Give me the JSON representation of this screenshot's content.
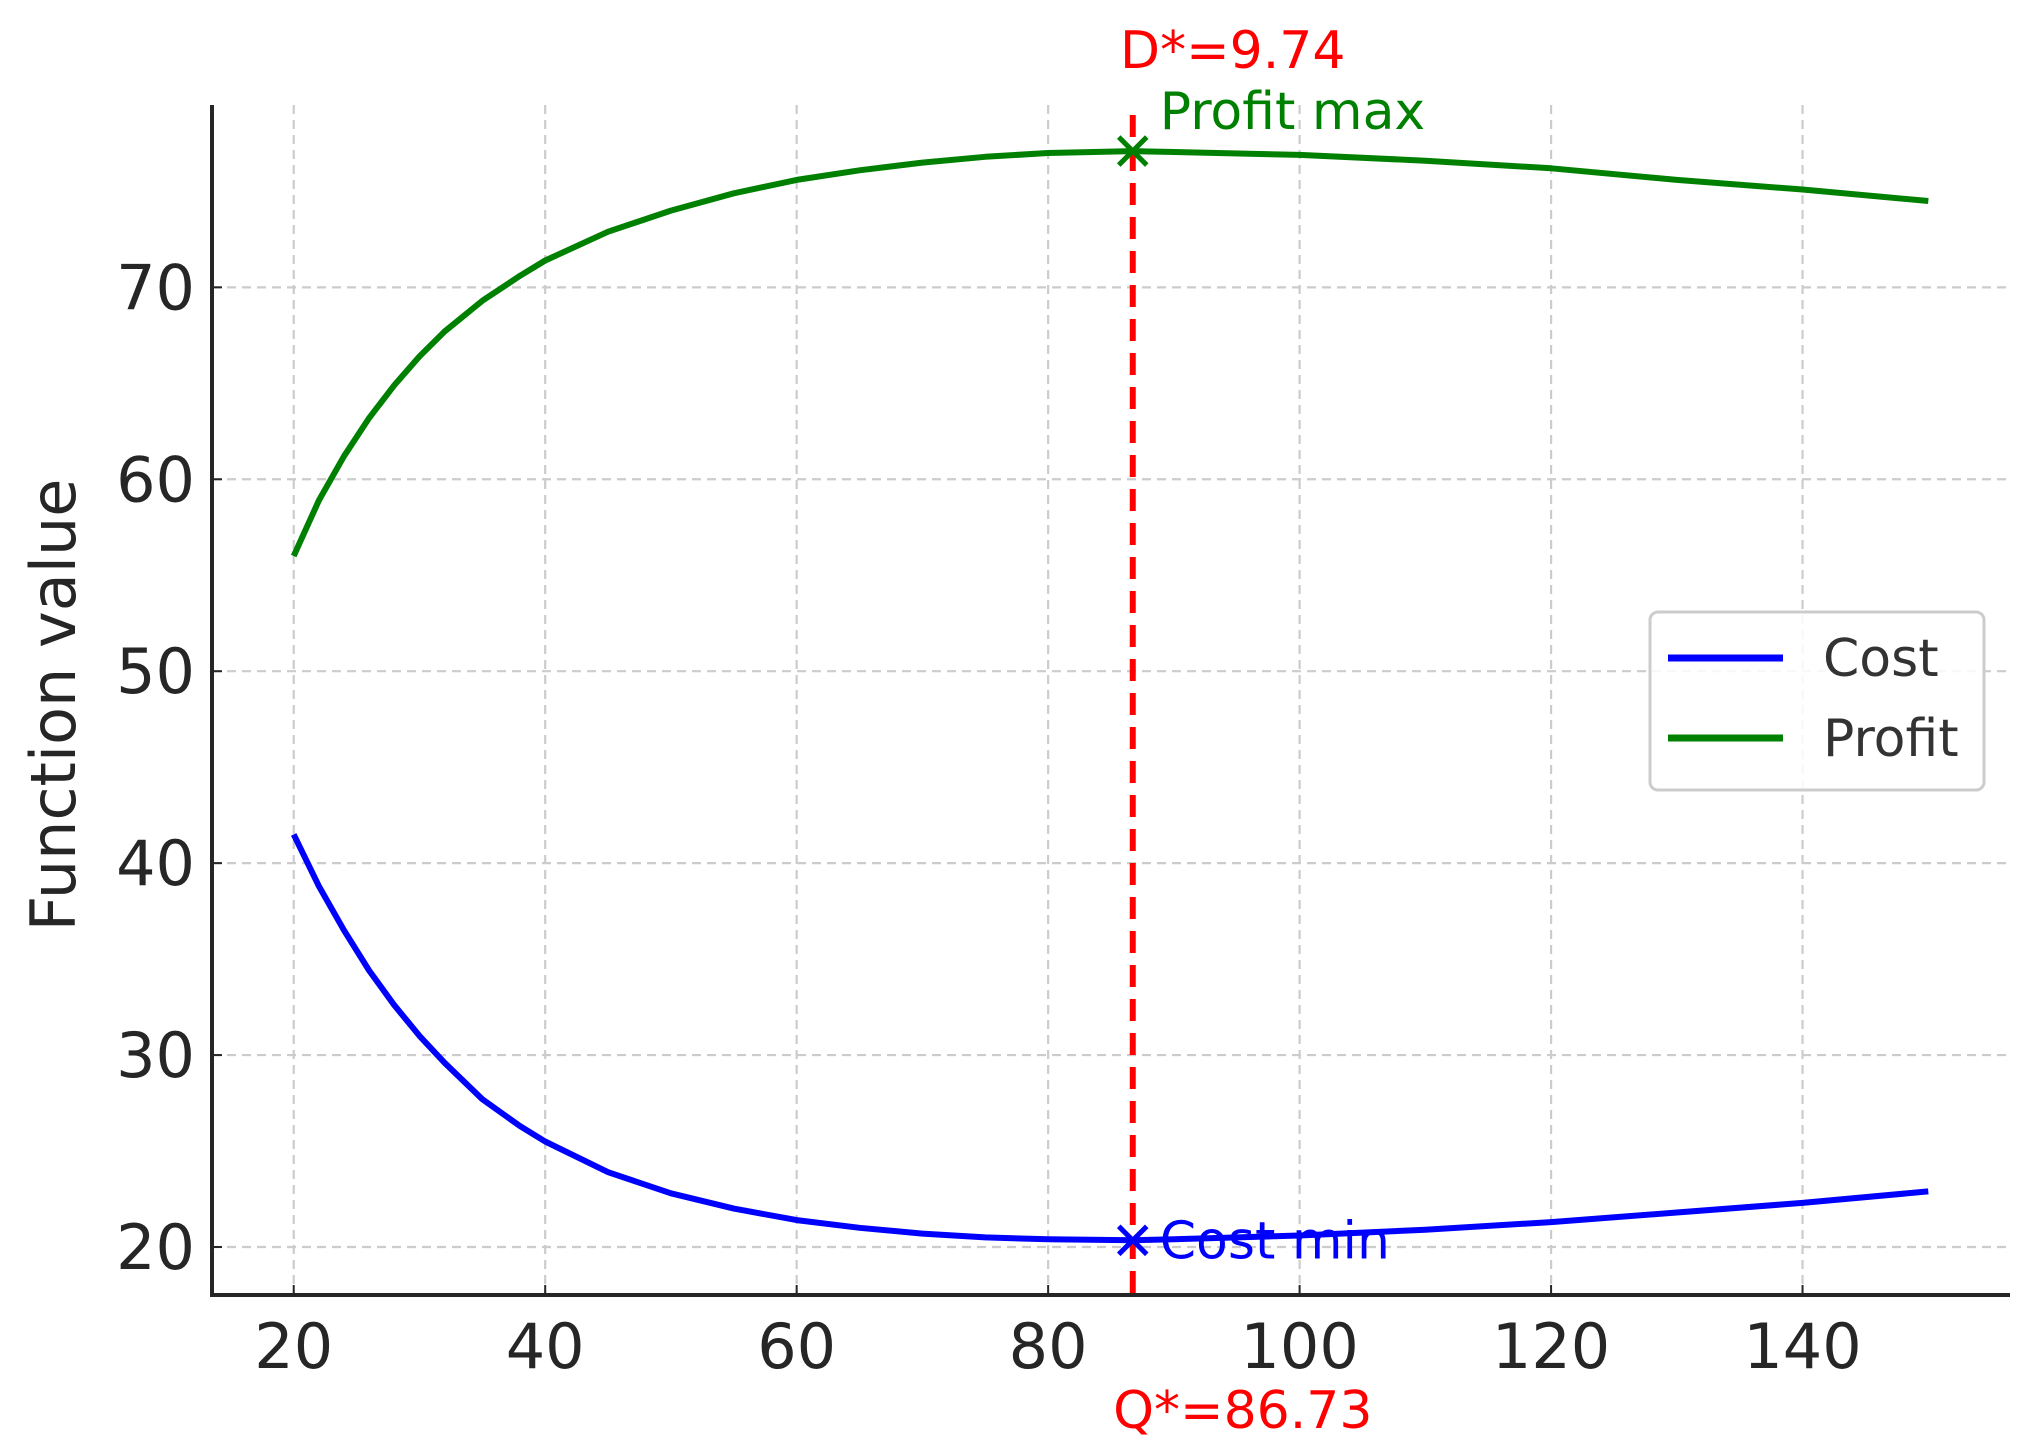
{
  "chart_data": {
    "type": "line",
    "title": "",
    "xlabel": "",
    "ylabel": "Function value",
    "xlim": [
      13.5,
      156.5
    ],
    "ylim": [
      17.5,
      79.5
    ],
    "x_ticks": [
      20,
      40,
      60,
      80,
      100,
      120,
      140
    ],
    "y_ticks": [
      20,
      30,
      40,
      50,
      60,
      70
    ],
    "grid": true,
    "legend_position": "center-right",
    "series": [
      {
        "name": "Cost",
        "color": "#0000ff",
        "x": [
          20,
          22,
          24,
          26,
          28,
          30,
          32,
          35,
          38,
          40,
          45,
          50,
          55,
          60,
          65,
          70,
          75,
          80,
          86.73,
          90,
          100,
          110,
          120,
          130,
          140,
          150
        ],
        "y": [
          41.5,
          38.8,
          36.5,
          34.4,
          32.6,
          31.0,
          29.6,
          27.7,
          26.3,
          25.5,
          23.9,
          22.8,
          22.0,
          21.4,
          21.0,
          20.7,
          20.5,
          20.4,
          20.35,
          20.4,
          20.6,
          20.9,
          21.3,
          21.8,
          22.3,
          22.9
        ]
      },
      {
        "name": "Profit",
        "color": "#008000",
        "x": [
          20,
          22,
          24,
          26,
          28,
          30,
          32,
          35,
          38,
          40,
          45,
          50,
          55,
          60,
          65,
          70,
          75,
          80,
          86.73,
          90,
          100,
          110,
          120,
          130,
          140,
          150
        ],
        "y": [
          56.0,
          58.9,
          61.2,
          63.2,
          64.9,
          66.4,
          67.7,
          69.3,
          70.6,
          71.4,
          72.9,
          74.0,
          74.9,
          75.6,
          76.1,
          76.5,
          76.8,
          77.0,
          77.1,
          77.05,
          76.9,
          76.6,
          76.2,
          75.6,
          75.1,
          74.5
        ]
      }
    ],
    "vline": {
      "x": 86.73,
      "color": "#ff0000",
      "label_bottom": "Q*=86.73",
      "label_top": "D*=9.74"
    },
    "markers": [
      {
        "x": 86.73,
        "y": 20.35,
        "color": "#0000ff",
        "label": "Cost min"
      },
      {
        "x": 86.73,
        "y": 77.1,
        "color": "#008000",
        "label": "Profit max"
      }
    ]
  }
}
